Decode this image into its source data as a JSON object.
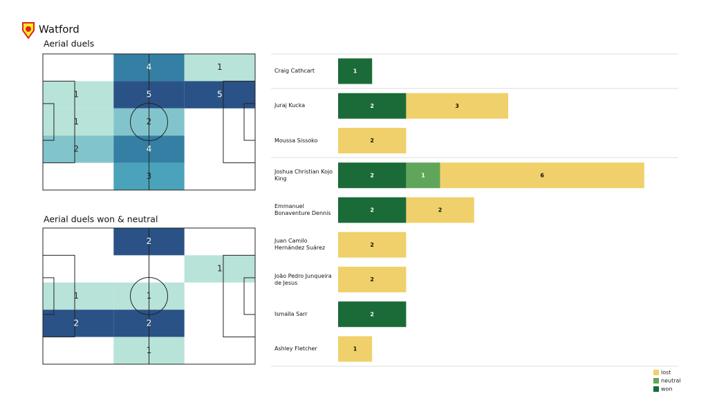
{
  "header": {
    "title": "Watford"
  },
  "chart_data": [
    {
      "type": "heatmap",
      "title": "Aerial duels",
      "values": [
        [
          null,
          4,
          1
        ],
        [
          1,
          5,
          5
        ],
        [
          1,
          2,
          null
        ],
        [
          2,
          4,
          null
        ],
        [
          null,
          3,
          null
        ]
      ],
      "palette": [
        "#b8e3d8",
        "#82c4cc",
        "#4aa3bb",
        "#347fa3",
        "#2a5286"
      ]
    },
    {
      "type": "heatmap",
      "title": "Aerial duels won & neutral",
      "values": [
        [
          null,
          2,
          null
        ],
        [
          null,
          null,
          1
        ],
        [
          1,
          1,
          null
        ],
        [
          2,
          2,
          null
        ],
        [
          null,
          1,
          null
        ]
      ],
      "palette": [
        "#b8e3d8",
        "#82c4cc",
        "#4aa3bb",
        "#347fa3",
        "#2a5286"
      ]
    },
    {
      "type": "bar",
      "orientation": "horizontal",
      "stacked": true,
      "categories": [
        "Craig Cathcart",
        "Juraj Kucka",
        "Moussa Sissoko",
        "Joshua Christian Kojo King",
        "Emmanuel Bonaventure Dennis",
        "Juan Camilo Hernández Suárez",
        "João Pedro Junqueira de Jesus",
        "Ismaïla Sarr",
        "Ashley Fletcher"
      ],
      "series": [
        {
          "name": "won",
          "color": "#1a6b38",
          "values": [
            1,
            2,
            null,
            2,
            2,
            null,
            null,
            2,
            null
          ]
        },
        {
          "name": "neutral",
          "color": "#5fa65a",
          "values": [
            null,
            null,
            null,
            1,
            null,
            null,
            null,
            null,
            null
          ]
        },
        {
          "name": "lost",
          "color": "#f0d06a",
          "values": [
            null,
            3,
            2,
            6,
            2,
            2,
            2,
            null,
            1
          ]
        }
      ],
      "xlim": [
        0,
        10
      ],
      "legend": "lower right"
    }
  ]
}
